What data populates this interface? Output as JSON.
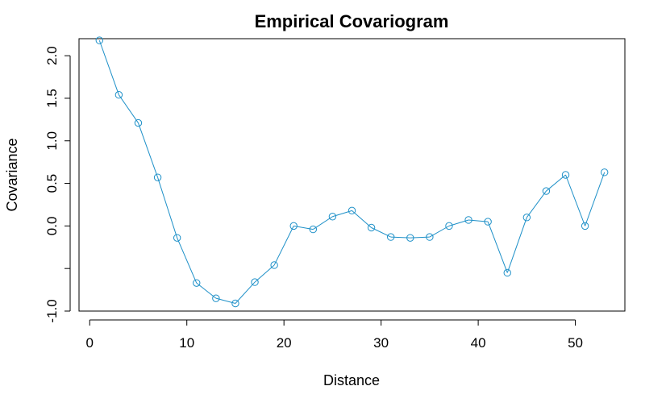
{
  "chart_data": {
    "type": "line",
    "title": "Empirical Covariogram",
    "xlabel": "Distance",
    "ylabel": "Covariance",
    "xlim": [
      -1.1,
      55.1
    ],
    "ylim": [
      -1.0,
      2.2
    ],
    "x_ticks": [
      0,
      10,
      20,
      30,
      40,
      50
    ],
    "x_tick_labels": [
      "0",
      "10",
      "20",
      "30",
      "40",
      "50"
    ],
    "y_ticks": [
      -1.0,
      -0.5,
      0.0,
      0.5,
      1.0,
      1.5,
      2.0
    ],
    "y_tick_labels": [
      "-1.0",
      "",
      "0.0",
      "0.5",
      "1.0",
      "1.5",
      "2.0"
    ],
    "grid": false,
    "line_color": "#1E90C8",
    "series": [
      {
        "x": [
          1,
          3,
          5,
          7,
          9,
          11,
          13,
          15,
          17,
          19,
          21,
          23,
          25,
          27,
          29,
          31,
          33,
          35,
          37,
          39,
          41,
          43,
          45,
          47,
          49,
          51,
          53
        ],
        "y": [
          2.18,
          1.54,
          1.21,
          0.57,
          -0.14,
          -0.67,
          -0.85,
          -0.91,
          -0.66,
          -0.46,
          0.0,
          -0.04,
          0.11,
          0.18,
          -0.02,
          -0.13,
          -0.14,
          -0.13,
          0.0,
          0.07,
          0.05,
          -0.55,
          0.1,
          0.41,
          0.6,
          0.0,
          0.63
        ]
      }
    ]
  }
}
